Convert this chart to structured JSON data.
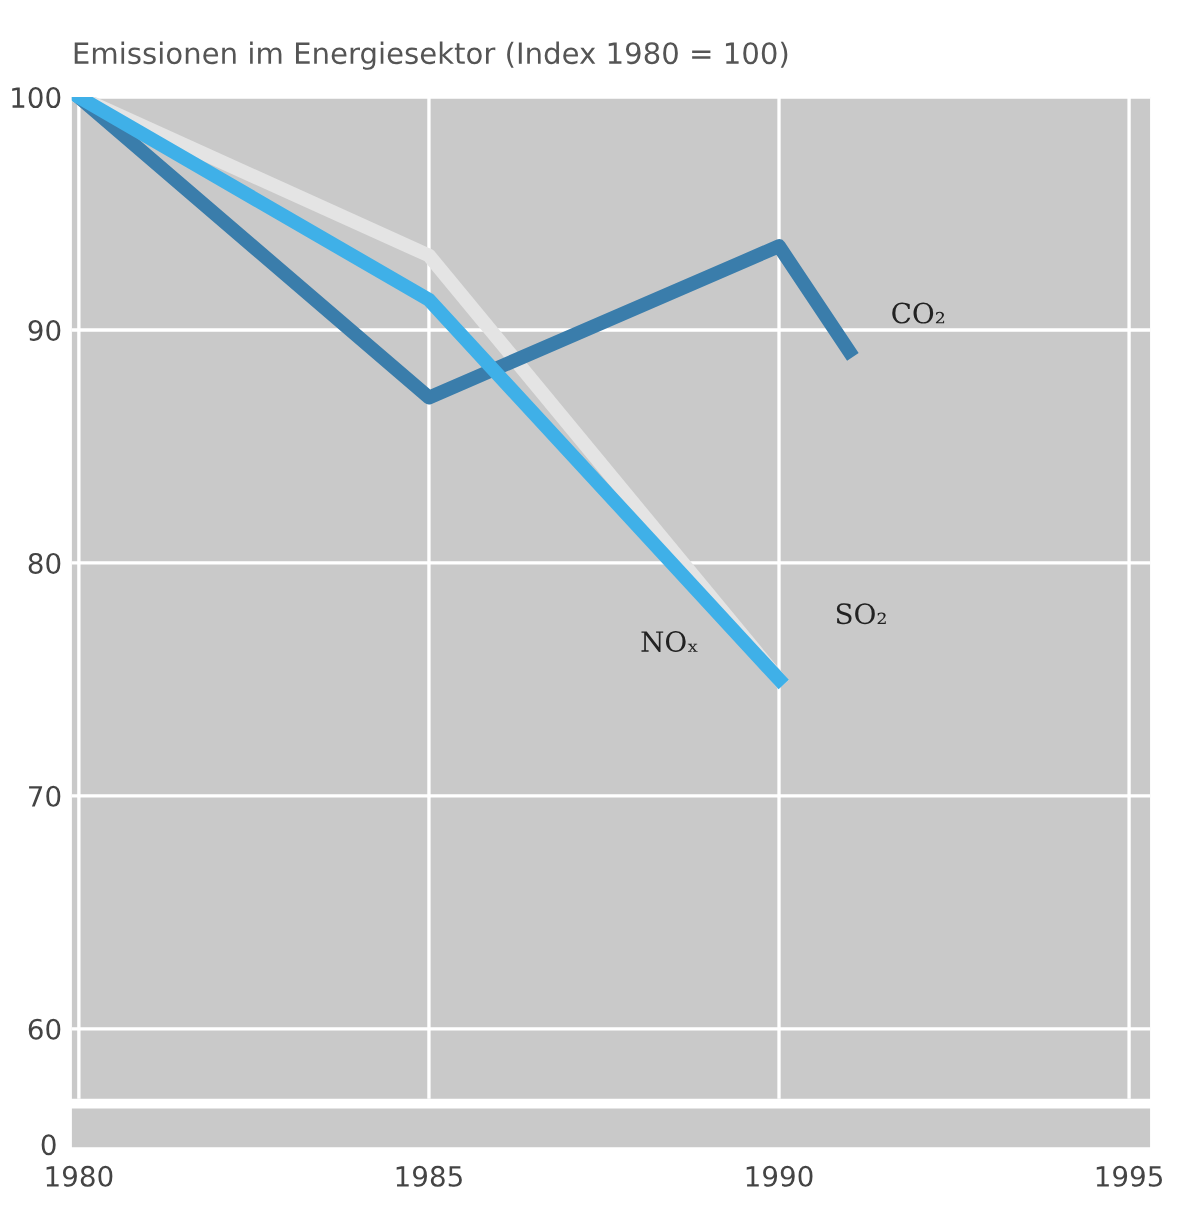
{
  "chart_data": {
    "type": "line",
    "title": "Emissionen im Energiesektor (Index 1980 = 100)",
    "series": [
      {
        "name": "SO₂",
        "color": "#e4e4e4",
        "x": [
          1980,
          1985,
          1990
        ],
        "values": [
          100,
          93.2,
          75
        ]
      },
      {
        "name": "CO₂",
        "color": "#3a7dab",
        "x": [
          1980,
          1985,
          1990,
          1991
        ],
        "values": [
          100,
          87.1,
          93.6,
          89.1
        ]
      },
      {
        "name": "NOₓ",
        "color": "#3fb0e8",
        "x": [
          1980,
          1985,
          1990
        ],
        "values": [
          100,
          91.3,
          75
        ]
      }
    ],
    "xlim": [
      1979.9,
      1995.3
    ],
    "xticks": [
      1980,
      1985,
      1990,
      1995
    ],
    "ylim": [
      57,
      100
    ],
    "yticks": [
      60,
      70,
      80,
      90,
      100
    ],
    "annotations": [
      "0"
    ],
    "grid": true,
    "legend": false,
    "marker": "none",
    "line_style": "solid"
  }
}
